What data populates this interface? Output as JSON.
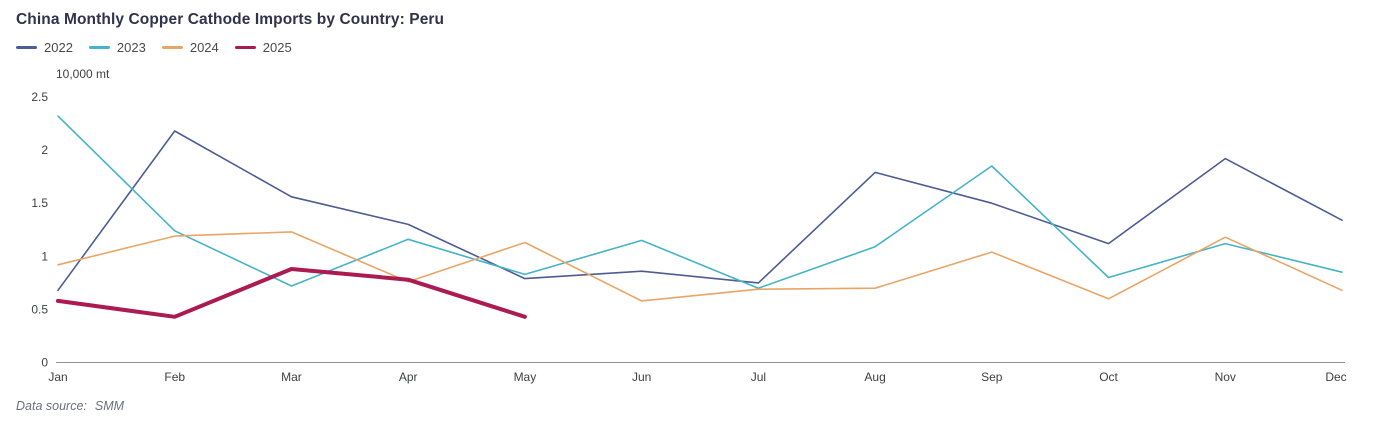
{
  "header": {
    "title": "China Monthly Copper Cathode Imports by Country: Peru"
  },
  "legend": {
    "items": [
      {
        "label": "2022",
        "color": "#4e5c94"
      },
      {
        "label": "2023",
        "color": "#45b4c6"
      },
      {
        "label": "2024",
        "color": "#e9a566"
      },
      {
        "label": "2025",
        "color": "#ac1a52"
      }
    ]
  },
  "chart_data": {
    "type": "line",
    "title": "China Monthly Copper Cathode Imports by Country: Peru",
    "unit_label": "10,000 mt",
    "categories": [
      "Jan",
      "Feb",
      "Mar",
      "Apr",
      "May",
      "Jun",
      "Jul",
      "Aug",
      "Sep",
      "Oct",
      "Nov",
      "Dec"
    ],
    "series": [
      {
        "name": "2022",
        "color": "#4e5c94",
        "line_width": 1.6,
        "values": [
          0.68,
          2.18,
          1.56,
          1.3,
          0.79,
          0.86,
          0.75,
          1.79,
          1.5,
          1.12,
          1.92,
          1.34
        ]
      },
      {
        "name": "2023",
        "color": "#45b4c6",
        "line_width": 1.6,
        "values": [
          2.32,
          1.24,
          0.72,
          1.16,
          0.83,
          1.15,
          0.7,
          1.09,
          1.85,
          0.8,
          1.12,
          0.85
        ]
      },
      {
        "name": "2024",
        "color": "#e9a566",
        "line_width": 1.6,
        "values": [
          0.92,
          1.19,
          1.23,
          0.76,
          1.13,
          0.58,
          0.69,
          0.7,
          1.04,
          0.6,
          1.18,
          0.68
        ]
      },
      {
        "name": "2025",
        "color": "#ac1a52",
        "line_width": 4,
        "values": [
          0.58,
          0.43,
          0.88,
          0.78,
          0.43,
          null,
          null,
          null,
          null,
          null,
          null,
          null
        ]
      }
    ],
    "ylim": [
      0,
      2.5
    ],
    "y_ticks": [
      "0",
      "0.5",
      "1",
      "1.5",
      "2",
      "2.5"
    ],
    "grid": false,
    "legend_position": "top-left",
    "axis_color": "#8f9399",
    "tick_label_color": "#3f4042"
  },
  "footer": {
    "data_source_label": "Data source:",
    "data_source_value": "SMM"
  }
}
